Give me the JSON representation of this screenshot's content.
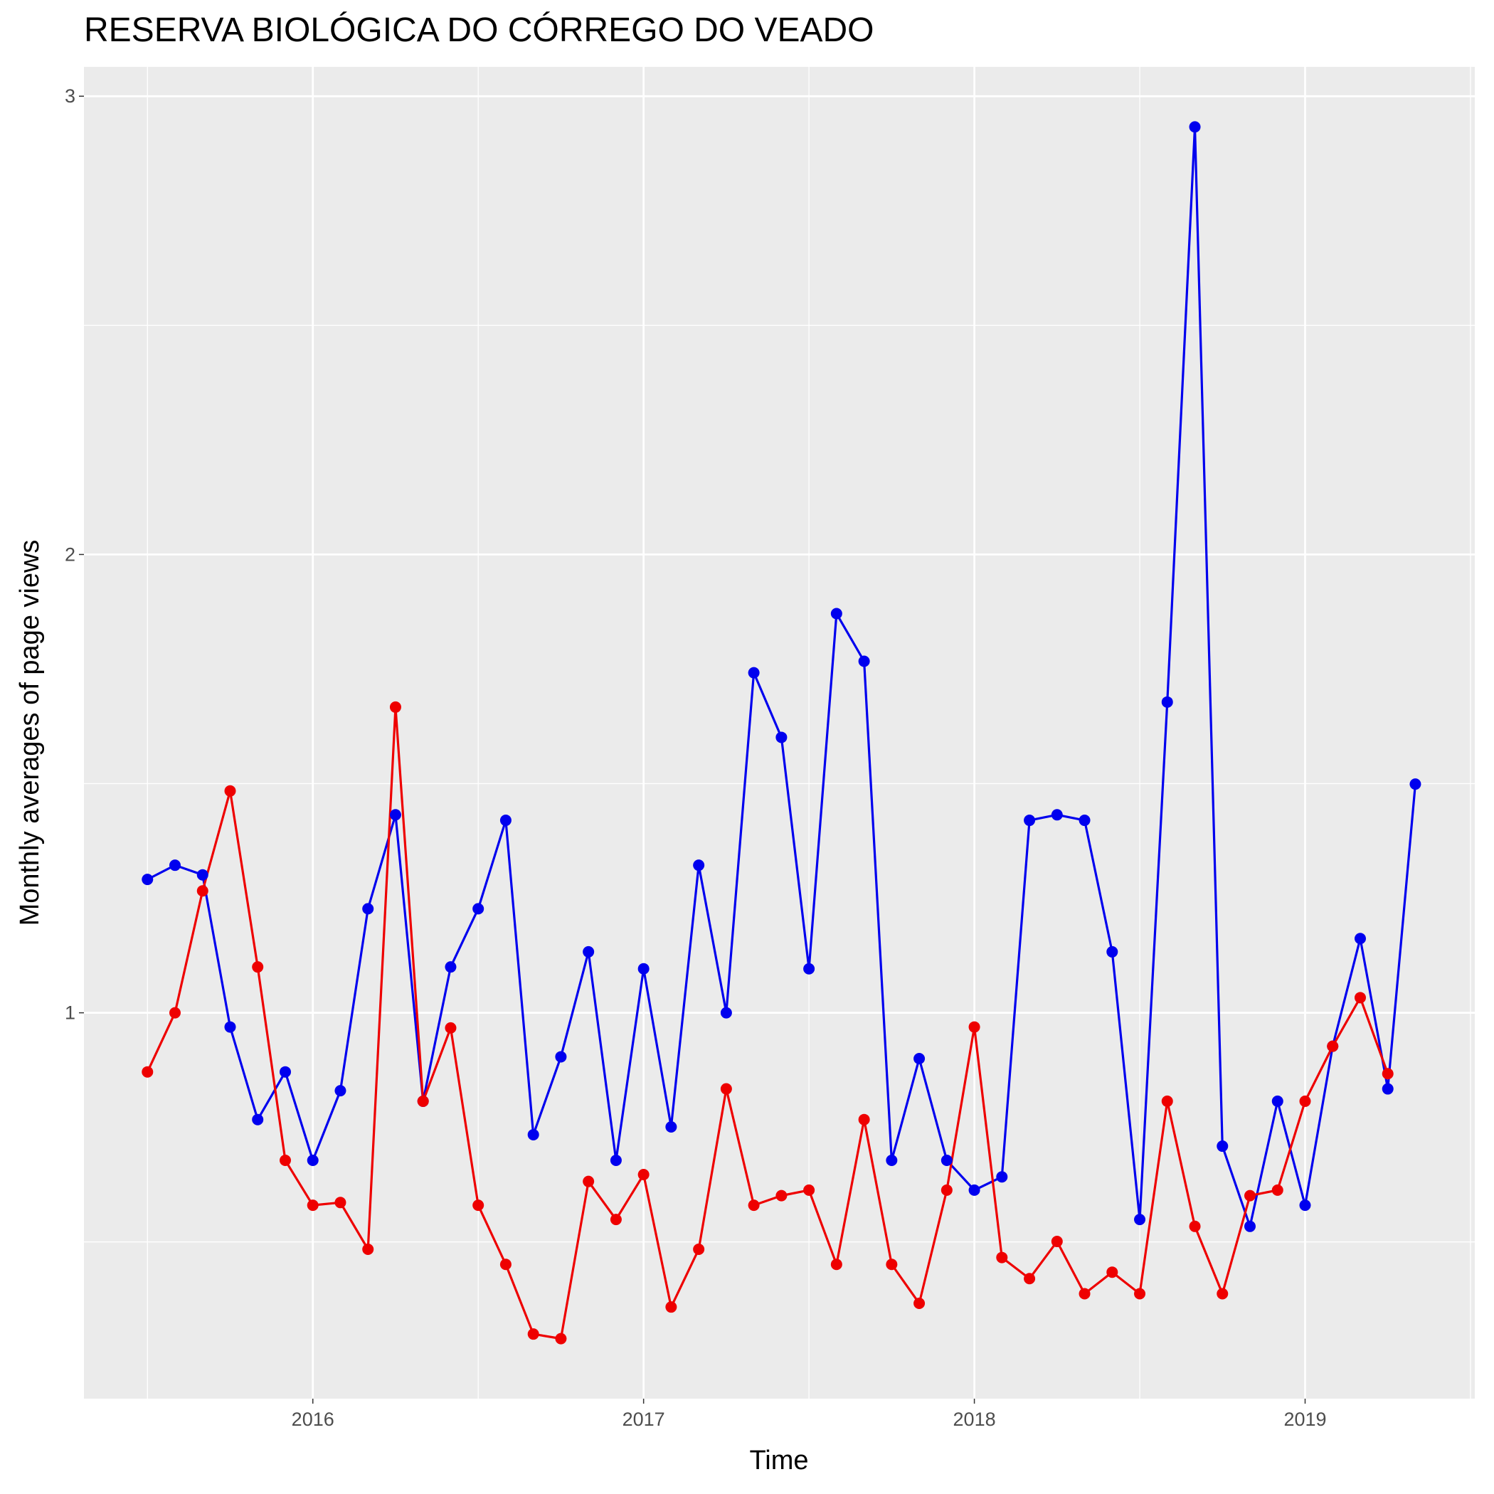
{
  "chart_data": {
    "type": "line",
    "title": "RESERVA BIOLÓGICA DO CÓRREGO DO VEADO",
    "x_label": "Time",
    "y_label": "Monthly averages of page views",
    "x": [
      2015.5,
      2015.5833,
      2015.6667,
      2015.75,
      2015.8333,
      2015.9167,
      2016.0,
      2016.0833,
      2016.1667,
      2016.25,
      2016.3333,
      2016.4167,
      2016.5,
      2016.5833,
      2016.6667,
      2016.75,
      2016.8333,
      2016.9167,
      2017.0,
      2017.0833,
      2017.1667,
      2017.25,
      2017.3333,
      2017.4167,
      2017.5,
      2017.5833,
      2017.6667,
      2017.75,
      2017.8333,
      2017.9167,
      2018.0,
      2018.0833,
      2018.1667,
      2018.25,
      2018.3333,
      2018.4167,
      2018.5,
      2018.5833,
      2018.6667,
      2018.75,
      2018.8333,
      2018.9167,
      2019.0,
      2019.0833,
      2019.1667,
      2019.25,
      2019.3333
    ],
    "series": [
      {
        "color": "#0000ee",
        "values": [
          1.291,
          1.322,
          1.301,
          0.969,
          0.767,
          0.871,
          0.678,
          0.83,
          1.227,
          1.432,
          0.807,
          1.1,
          1.227,
          1.42,
          0.734,
          0.904,
          1.133,
          0.678,
          1.096,
          0.751,
          1.322,
          1.0,
          1.742,
          1.601,
          1.096,
          1.871,
          1.767,
          0.678,
          0.9,
          0.678,
          0.613,
          0.642,
          1.42,
          1.432,
          1.42,
          1.133,
          0.549,
          1.678,
          2.933,
          0.709,
          0.534,
          0.807,
          0.58,
          0.927,
          1.162,
          0.834,
          1.499
        ]
      },
      {
        "color": "#ee0000",
        "values": [
          0.871,
          1.0,
          1.266,
          1.484,
          1.1,
          0.678,
          0.58,
          0.586,
          0.484,
          1.667,
          0.807,
          0.967,
          0.58,
          0.451,
          0.299,
          0.289,
          0.632,
          0.549,
          0.647,
          0.358,
          0.484,
          0.834,
          0.58,
          0.601,
          0.613,
          0.451,
          0.767,
          0.451,
          0.366,
          0.613,
          0.969,
          0.466,
          0.42,
          0.501,
          0.387,
          0.434,
          0.387,
          0.807,
          0.534,
          0.387,
          0.601,
          0.613,
          0.807,
          0.927,
          1.033,
          0.867,
          null
        ]
      }
    ],
    "xlim": [
      2015.308,
      2019.513
    ],
    "xticks": [
      2016,
      2017,
      2018,
      2019
    ],
    "ylim": [
      0.158,
      3.064
    ],
    "yticks": [
      1,
      2,
      3
    ],
    "grid": true
  }
}
